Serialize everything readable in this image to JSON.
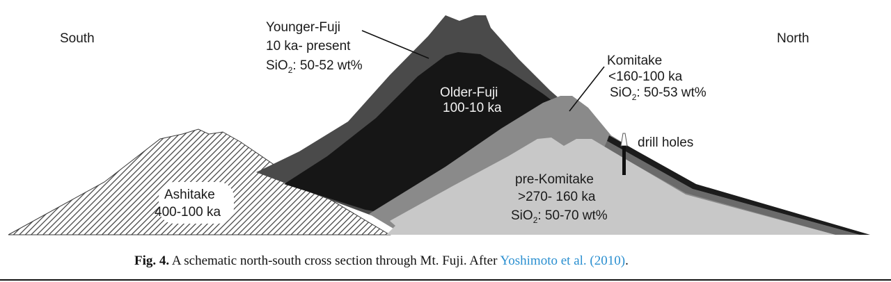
{
  "directions": {
    "left": "South",
    "right": "North"
  },
  "units": {
    "younger_fuji": {
      "name": "Younger-Fuji",
      "age": "10 ka- present",
      "sio2_prefix": "SiO",
      "sio2_sub": "2",
      "sio2_value": ": 50-52 wt%"
    },
    "older_fuji": {
      "name": "Older-Fuji",
      "age": "100-10 ka"
    },
    "komitake": {
      "name": "Komitake",
      "age": "<160-100 ka",
      "sio2_prefix": "SiO",
      "sio2_sub": "2",
      "sio2_value": ": 50-53 wt%"
    },
    "pre_komitake": {
      "name": "pre-Komitake",
      "age": ">270- 160 ka",
      "sio2_prefix": "SiO",
      "sio2_sub": "2",
      "sio2_value": ": 50-70 wt%"
    },
    "ashitake": {
      "name": "Ashitake",
      "age": "400-100 ka"
    }
  },
  "drill_holes_label": "drill holes",
  "caption": {
    "fig_label": "Fig. 4.",
    "text": " A schematic north-south cross section through Mt. Fuji. After ",
    "link": "Yoshimoto et al. (2010)",
    "end": "."
  },
  "colors": {
    "younger_fuji": "#4a4a4a",
    "older_fuji": "#161616",
    "komitake": "#8a8a8a",
    "pre_komitake": "#c8c8c8",
    "ashitake_hatch": "#3a3a3a",
    "link": "#2a8fd0"
  }
}
